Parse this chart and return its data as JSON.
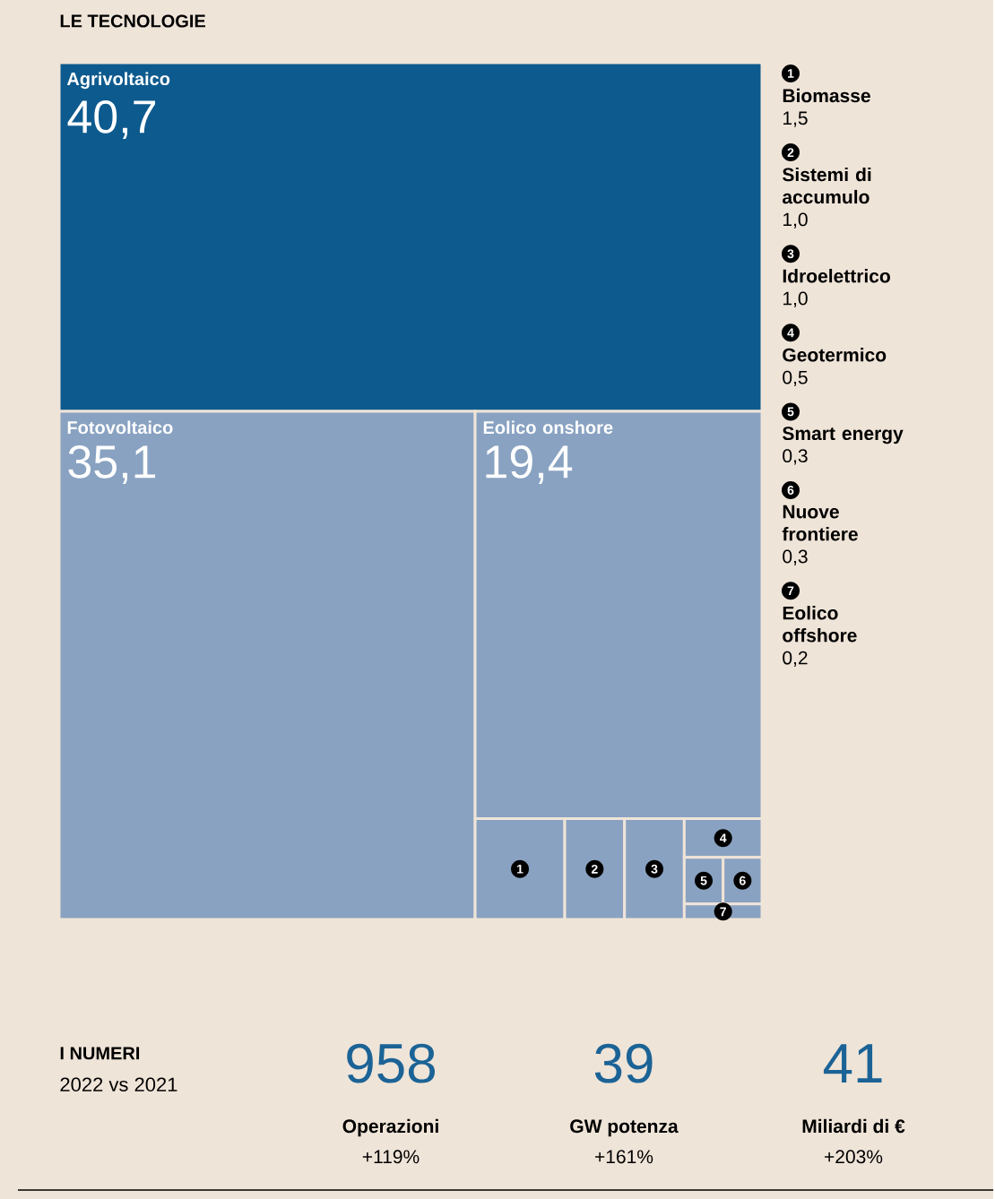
{
  "chart_data": [
    {
      "type": "other",
      "title": "LE TECNOLOGIE",
      "categories": [
        "Agrivoltaico",
        "Fotovoltaico",
        "Eolico onshore",
        "Biomasse",
        "Sistemi di accumulo",
        "Idroelettrico",
        "Geotermico",
        "Smart energy",
        "Nuove frontiere",
        "Eolico offshore"
      ],
      "values": [
        40.7,
        35.1,
        19.4,
        1.5,
        1.0,
        1.0,
        0.5,
        0.3,
        0.3,
        0.2
      ],
      "value_labels": [
        "40,7",
        "35,1",
        "19,4",
        "1,5",
        "1,0",
        "1,0",
        "0,5",
        "0,3",
        "0,3",
        "0,2"
      ],
      "colors": [
        "#0d5a8e",
        "#89a2c1",
        "#89a2c1",
        "#89a2c1",
        "#89a2c1",
        "#89a2c1",
        "#89a2c1",
        "#89a2c1",
        "#89a2c1",
        "#89a2c1"
      ],
      "annotations": [
        "1",
        "2",
        "3",
        "4",
        "5",
        "6",
        "7"
      ]
    },
    {
      "type": "other",
      "title": "I NUMERI",
      "subtitle": "2022 vs 2021",
      "categories": [
        "Operazioni",
        "GW potenza",
        "Miliardi di €"
      ],
      "values": [
        958,
        39,
        41
      ],
      "value_labels": [
        "958",
        "39",
        "41"
      ],
      "colors": [
        "#1b6396",
        "#1b6396",
        "#1b6396"
      ],
      "annotations": [
        "+119%",
        "+161%",
        "+203%"
      ]
    }
  ]
}
